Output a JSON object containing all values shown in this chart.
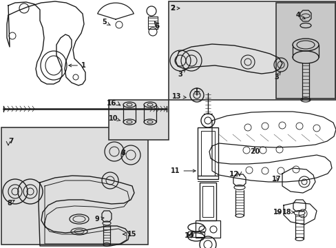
{
  "bg_color": "#ffffff",
  "line_color": "#1a1a1a",
  "gray_bg": "#dedede",
  "gray_bg2": "#c8c8c8",
  "fig_width": 4.89,
  "fig_height": 3.6,
  "dpi": 100
}
